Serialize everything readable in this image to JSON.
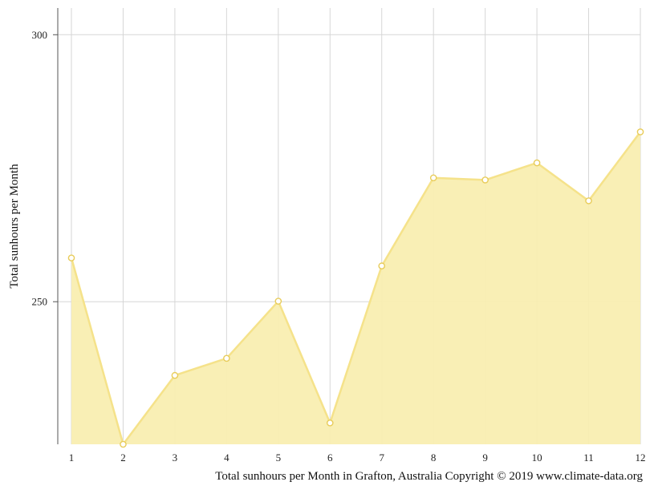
{
  "chart_data": {
    "type": "area",
    "categories": [
      "1",
      "2",
      "3",
      "4",
      "5",
      "6",
      "7",
      "8",
      "9",
      "10",
      "11",
      "12"
    ],
    "series": [
      {
        "values": [
          258.2,
          223.3,
          236.2,
          239.4,
          250.1,
          227.3,
          256.7,
          273.2,
          272.8,
          276.0,
          268.9,
          281.8
        ]
      }
    ],
    "xlabel": "Total sunhours per Month in Grafton, Australia Copyright © 2019 www.climate-data.org",
    "ylabel": "Total sunhours per Month",
    "ylim": [
      223.3,
      305
    ],
    "yticks": [
      250,
      300
    ],
    "grid": true,
    "colors": {
      "fill": "#f9eeb1",
      "line": "#f5e28a",
      "marker_fill": "#ffffff",
      "marker_stroke": "#e8cc5a"
    }
  }
}
